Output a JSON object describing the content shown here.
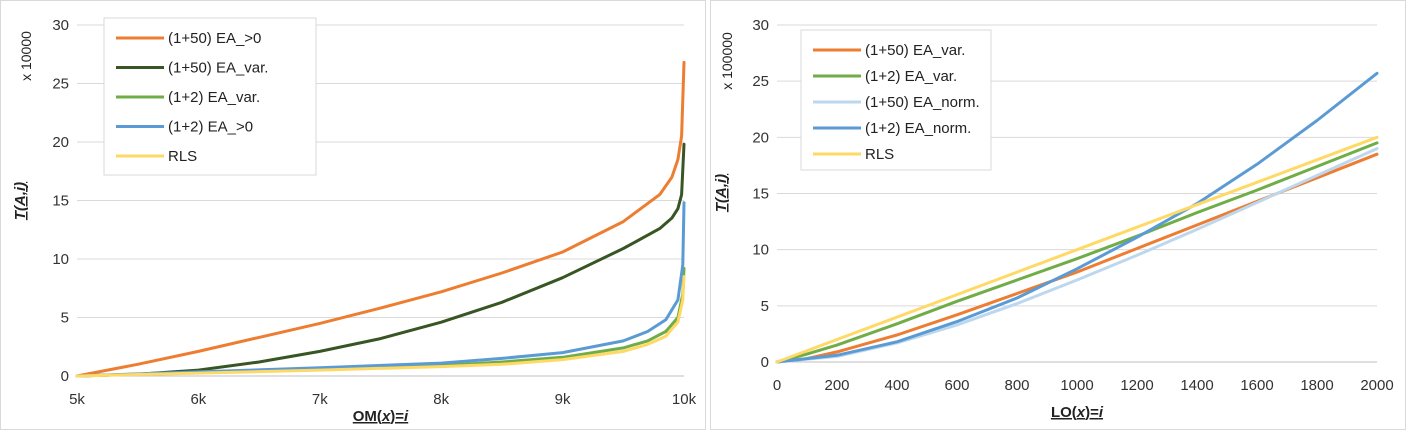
{
  "chart_data": [
    {
      "type": "line",
      "xlabel": {
        "prefix": "OM(",
        "var": "x",
        "mid": ")=",
        "suffix": "i"
      },
      "ylabel": {
        "prefix": "T(",
        "var": "A,i",
        "suffix": ")"
      },
      "scale_label": "x 10000",
      "xlim": [
        5000,
        10000
      ],
      "ylim": [
        0,
        30
      ],
      "x_ticks": [
        5000,
        6000,
        7000,
        8000,
        9000,
        10000
      ],
      "x_tick_labels": [
        "5k",
        "6k",
        "7k",
        "8k",
        "9k",
        "10k"
      ],
      "y_ticks": [
        0,
        5,
        10,
        15,
        20,
        25,
        30
      ],
      "y_tick_labels": [
        "0",
        "5",
        "10",
        "15",
        "20",
        "25",
        "30"
      ],
      "legend_position": "top-left",
      "series": [
        {
          "name": "(1+50) EA_>0",
          "color": "#ED7D31",
          "x": [
            5000,
            5500,
            6000,
            6500,
            7000,
            7500,
            8000,
            8500,
            9000,
            9500,
            9800,
            9900,
            9950,
            9980,
            10000
          ],
          "y": [
            0,
            1.0,
            2.1,
            3.3,
            4.5,
            5.8,
            7.2,
            8.8,
            10.6,
            13.2,
            15.5,
            17.0,
            18.5,
            20.5,
            26.8
          ]
        },
        {
          "name": "(1+50) EA_var.",
          "color": "#375623",
          "x": [
            5000,
            5500,
            6000,
            6500,
            7000,
            7500,
            8000,
            8500,
            9000,
            9500,
            9800,
            9900,
            9950,
            9980,
            10000
          ],
          "y": [
            0,
            0.15,
            0.5,
            1.2,
            2.1,
            3.2,
            4.6,
            6.3,
            8.4,
            10.9,
            12.6,
            13.5,
            14.3,
            15.5,
            19.8
          ]
        },
        {
          "name": "(1+2) EA_var.",
          "color": "#70AD47",
          "x": [
            5000,
            6000,
            7000,
            8000,
            8500,
            9000,
            9500,
            9700,
            9850,
            9950,
            9990,
            10000
          ],
          "y": [
            0,
            0.3,
            0.6,
            0.9,
            1.2,
            1.6,
            2.4,
            3.0,
            3.8,
            5.0,
            7.0,
            9.2
          ]
        },
        {
          "name": "(1+2) EA_>0",
          "color": "#5B9BD5",
          "x": [
            5000,
            6000,
            7000,
            8000,
            8500,
            9000,
            9500,
            9700,
            9850,
            9950,
            9990,
            10000
          ],
          "y": [
            0,
            0.35,
            0.7,
            1.1,
            1.5,
            2.0,
            3.0,
            3.8,
            4.8,
            6.5,
            9.5,
            14.8
          ]
        },
        {
          "name": "RLS",
          "color": "#FFD966",
          "x": [
            5000,
            6000,
            7000,
            8000,
            8500,
            9000,
            9500,
            9700,
            9850,
            9950,
            9990,
            10000
          ],
          "y": [
            0,
            0.25,
            0.5,
            0.8,
            1.0,
            1.4,
            2.1,
            2.7,
            3.4,
            4.6,
            6.5,
            8.5
          ]
        }
      ]
    },
    {
      "type": "line",
      "xlabel": {
        "prefix": "LO(",
        "var": "x",
        "mid": ")=",
        "suffix": "i"
      },
      "ylabel": {
        "prefix": "T(",
        "var": "A,i",
        "suffix": ")"
      },
      "scale_label": "x 100000",
      "xlim": [
        0,
        2000
      ],
      "ylim": [
        0,
        30
      ],
      "x_ticks": [
        0,
        200,
        400,
        600,
        800,
        1000,
        1200,
        1400,
        1600,
        1800,
        2000
      ],
      "x_tick_labels": [
        "0",
        "200",
        "400",
        "600",
        "800",
        "1000",
        "1200",
        "1400",
        "1600",
        "1800",
        "2000"
      ],
      "y_ticks": [
        0,
        5,
        10,
        15,
        20,
        25,
        30
      ],
      "y_tick_labels": [
        "0",
        "5",
        "10",
        "15",
        "20",
        "25",
        "30"
      ],
      "legend_position": "top-left",
      "series": [
        {
          "name": "(1+50) EA_var.",
          "color": "#ED7D31",
          "x": [
            0,
            100,
            200,
            400,
            600,
            800,
            1000,
            1200,
            1400,
            1600,
            1800,
            2000
          ],
          "y": [
            0,
            0.3,
            0.9,
            2.4,
            4.2,
            6.1,
            8.0,
            10.1,
            12.2,
            14.3,
            16.4,
            18.5
          ]
        },
        {
          "name": "(1+2) EA_var.",
          "color": "#70AD47",
          "x": [
            0,
            100,
            200,
            400,
            600,
            800,
            1000,
            1200,
            1400,
            1600,
            1800,
            2000
          ],
          "y": [
            0,
            0.7,
            1.5,
            3.4,
            5.4,
            7.3,
            9.2,
            11.2,
            13.3,
            15.3,
            17.4,
            19.5
          ]
        },
        {
          "name": "(1+50) EA_norm.",
          "color": "#BDD7EE",
          "x": [
            0,
            200,
            400,
            600,
            800,
            1000,
            1200,
            1400,
            1600,
            1800,
            2000
          ],
          "y": [
            0,
            0.5,
            1.7,
            3.3,
            5.2,
            7.3,
            9.5,
            11.8,
            14.2,
            16.6,
            19.0
          ]
        },
        {
          "name": "(1+2) EA_norm.",
          "color": "#5B9BD5",
          "x": [
            0,
            200,
            400,
            600,
            800,
            1000,
            1200,
            1400,
            1600,
            1800,
            2000
          ],
          "y": [
            0,
            0.6,
            1.8,
            3.6,
            5.7,
            8.3,
            11.1,
            14.1,
            17.6,
            21.5,
            25.7
          ]
        },
        {
          "name": "RLS",
          "color": "#FFD966",
          "x": [
            0,
            200,
            400,
            600,
            800,
            1000,
            1200,
            1400,
            1600,
            1800,
            2000
          ],
          "y": [
            0,
            2.0,
            4.0,
            6.0,
            8.0,
            10.0,
            12.0,
            14.0,
            16.0,
            18.0,
            20.0
          ]
        }
      ]
    }
  ]
}
